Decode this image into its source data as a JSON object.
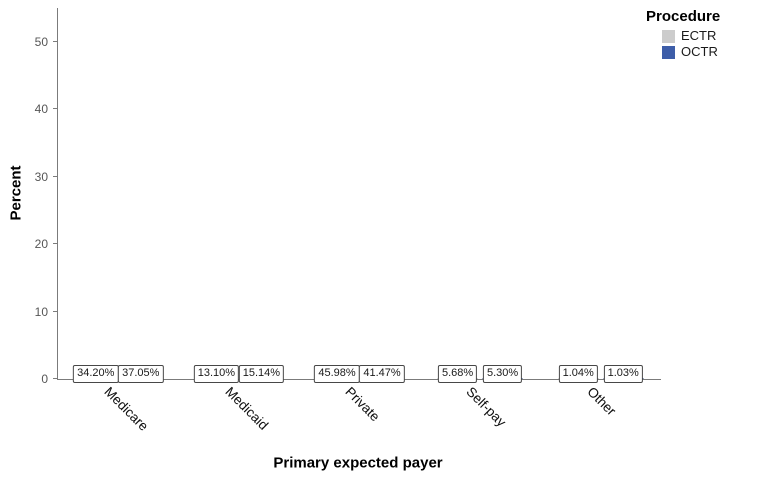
{
  "chart_data": {
    "type": "bar",
    "title": "",
    "categories": [
      "Medicare",
      "Medicaid",
      "Private",
      "Self-pay",
      "Other"
    ],
    "series": [
      {
        "name": "ECTR",
        "color": "#cccccc",
        "border_color": "#ababab",
        "values": [
          34.2,
          13.1,
          45.98,
          5.68,
          1.04
        ],
        "labels": [
          "34.20%",
          "13.10%",
          "45.98%",
          "5.68%",
          "1.04%"
        ]
      },
      {
        "name": "OCTR",
        "color": "#3d5da8",
        "border_color": "#34508f",
        "values": [
          37.05,
          15.14,
          41.47,
          5.3,
          1.03
        ],
        "labels": [
          "37.05%",
          "15.14%",
          "41.47%",
          "5.30%",
          "1.03%"
        ]
      }
    ],
    "xlabel": "Primary expected payer",
    "ylabel": "Percent",
    "ylim": [
      0,
      55
    ],
    "yticks": [
      0,
      10,
      20,
      30,
      40,
      50
    ],
    "grid": false,
    "bar_label_style": "boxed",
    "legend": {
      "title": "Procedure",
      "position": "top-right"
    },
    "axis_color": "#7b7b7b",
    "tick_label_color": "#565656"
  }
}
